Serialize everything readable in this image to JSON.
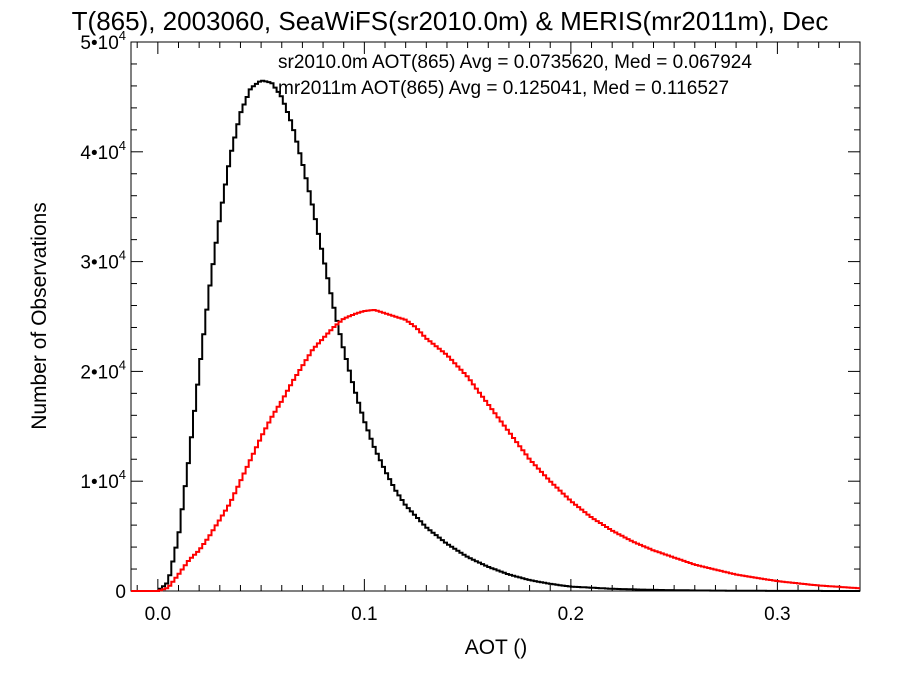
{
  "chart_data": {
    "type": "line",
    "title": "T(865), 2003060, SeaWiFS(sr2010.0m) & MERIS(mr2011m), Dec",
    "xlabel": "AOT ()",
    "ylabel": "Number of Observations",
    "xlim": [
      -0.013,
      0.34
    ],
    "ylim": [
      0,
      50000
    ],
    "grid": false,
    "x_ticks": [
      {
        "value": 0.0,
        "label": "0.0"
      },
      {
        "value": 0.1,
        "label": "0.1"
      },
      {
        "value": 0.2,
        "label": "0.2"
      },
      {
        "value": 0.3,
        "label": "0.3"
      }
    ],
    "y_ticks": [
      {
        "value": 0,
        "mantissa": "0",
        "exponent": ""
      },
      {
        "value": 10000,
        "mantissa": "1•10",
        "exponent": "4"
      },
      {
        "value": 20000,
        "mantissa": "2•10",
        "exponent": "4"
      },
      {
        "value": 30000,
        "mantissa": "3•10",
        "exponent": "4"
      },
      {
        "value": 40000,
        "mantissa": "4•10",
        "exponent": "4"
      },
      {
        "value": 50000,
        "mantissa": "5•10",
        "exponent": "4"
      }
    ],
    "annotations": [
      {
        "text": "sr2010.0m AOT(865) Avg = 0.0735620, Med = 0.067924",
        "color": "#000000"
      },
      {
        "text": "mr2011m AOT(865) Avg = 0.125041, Med = 0.116527",
        "color": "#ff0000"
      }
    ],
    "series": [
      {
        "color": "#000000",
        "x": [
          0.0,
          0.005,
          0.01,
          0.015,
          0.02,
          0.025,
          0.03,
          0.035,
          0.04,
          0.045,
          0.05,
          0.055,
          0.06,
          0.065,
          0.07,
          0.075,
          0.08,
          0.085,
          0.09,
          0.095,
          0.1,
          0.105,
          0.11,
          0.115,
          0.12,
          0.13,
          0.14,
          0.15,
          0.16,
          0.17,
          0.18,
          0.19,
          0.2,
          0.22,
          0.24,
          0.26,
          0.28,
          0.3,
          0.32,
          0.34
        ],
        "y": [
          0,
          800,
          5000,
          12000,
          20000,
          27500,
          34000,
          39500,
          43500,
          45800,
          46500,
          46300,
          45000,
          42500,
          39000,
          35000,
          30500,
          26000,
          22000,
          18500,
          15500,
          13000,
          11000,
          9200,
          7800,
          5800,
          4300,
          3100,
          2200,
          1500,
          1000,
          650,
          400,
          200,
          100,
          50,
          25,
          10,
          5,
          0
        ]
      },
      {
        "color": "#ff0000",
        "x": [
          0.0,
          0.005,
          0.01,
          0.015,
          0.02,
          0.025,
          0.03,
          0.035,
          0.04,
          0.045,
          0.05,
          0.055,
          0.06,
          0.065,
          0.07,
          0.075,
          0.08,
          0.085,
          0.09,
          0.095,
          0.1,
          0.105,
          0.11,
          0.115,
          0.12,
          0.125,
          0.13,
          0.14,
          0.15,
          0.16,
          0.17,
          0.18,
          0.19,
          0.2,
          0.21,
          0.22,
          0.23,
          0.24,
          0.26,
          0.28,
          0.3,
          0.32,
          0.34
        ],
        "y": [
          0,
          300,
          1500,
          2800,
          3700,
          5000,
          6500,
          8000,
          10000,
          12000,
          14000,
          15800,
          17300,
          19000,
          20500,
          22000,
          23000,
          24000,
          24800,
          25200,
          25500,
          25600,
          25300,
          25000,
          24700,
          24000,
          23000,
          21500,
          19500,
          17000,
          14500,
          12000,
          10000,
          8200,
          6700,
          5500,
          4500,
          3700,
          2400,
          1500,
          900,
          500,
          250
        ]
      }
    ]
  }
}
